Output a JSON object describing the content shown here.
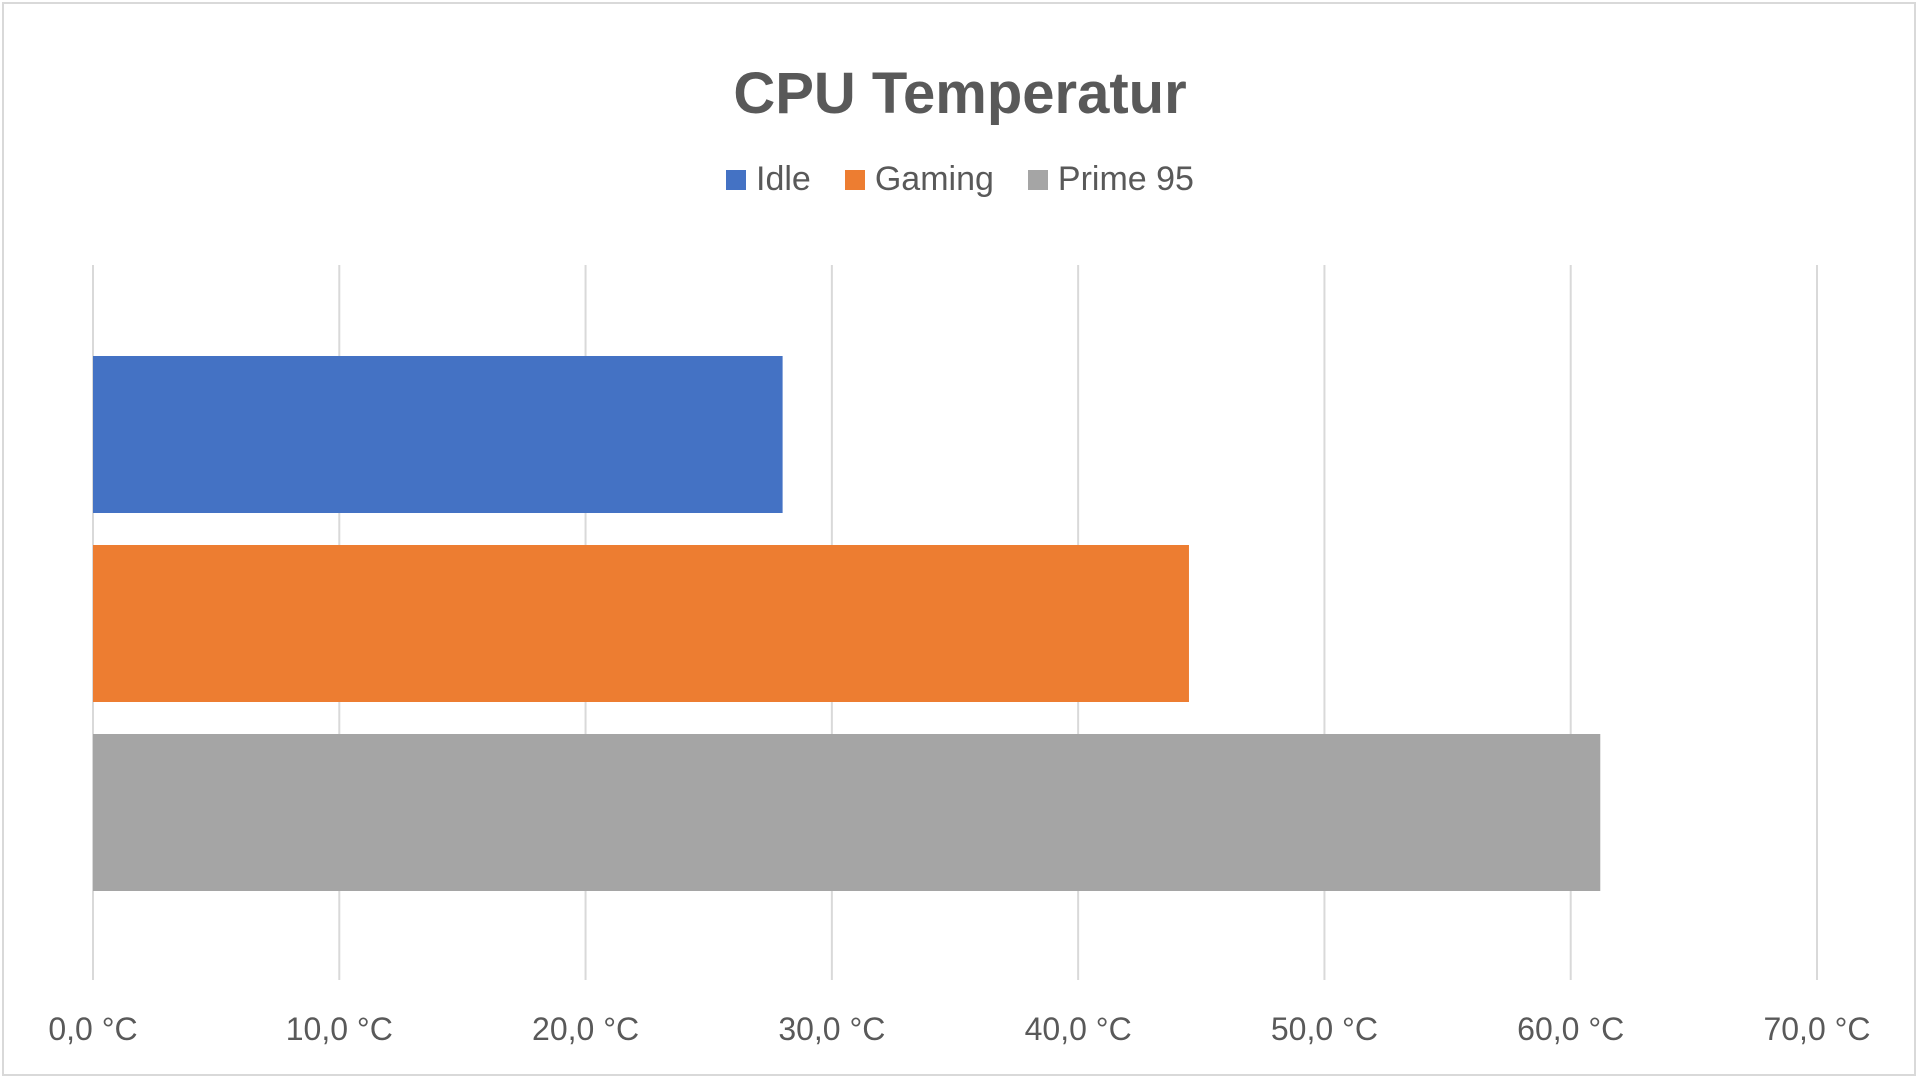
{
  "chart_data": {
    "type": "bar",
    "orientation": "horizontal",
    "title": "CPU Temperatur",
    "series": [
      {
        "name": "Idle",
        "value": 28.0,
        "color": "#4472c4"
      },
      {
        "name": "Gaming",
        "value": 44.5,
        "color": "#ed7d31"
      },
      {
        "name": "Prime 95",
        "value": 61.2,
        "color": "#a5a5a5"
      }
    ],
    "xlim": [
      0,
      70
    ],
    "x_ticks": [
      {
        "value": 0,
        "label": "0,0 °C"
      },
      {
        "value": 10,
        "label": "10,0 °C"
      },
      {
        "value": 20,
        "label": "20,0 °C"
      },
      {
        "value": 30,
        "label": "30,0 °C"
      },
      {
        "value": 40,
        "label": "40,0 °C"
      },
      {
        "value": 50,
        "label": "50,0 °C"
      },
      {
        "value": 60,
        "label": "60,0 °C"
      },
      {
        "value": 70,
        "label": "70,0 °C"
      }
    ],
    "grid": true,
    "legend_position": "top"
  }
}
